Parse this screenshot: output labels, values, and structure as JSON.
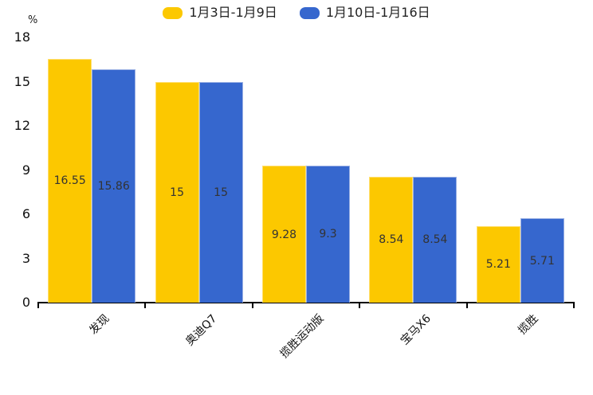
{
  "chart": {
    "unit_label": "%",
    "legend": {
      "items": [
        {
          "label": "1月3日-1月9日",
          "color": "#FCC800"
        },
        {
          "label": "1月10日-1月16日",
          "color": "#3667CE"
        }
      ]
    }
  },
  "chart_data": {
    "type": "bar",
    "title": "",
    "categories": [
      "发现",
      "奥迪Q7",
      "揽胜运动版",
      "宝马X6",
      "揽胜"
    ],
    "series": [
      {
        "name": "1月3日-1月9日",
        "color": "#FCC800",
        "border_color": "#FFDF70",
        "values": [
          16.55,
          15,
          9.28,
          8.54,
          5.21
        ]
      },
      {
        "name": "1月10日-1月16日",
        "color": "#3667CE",
        "border_color": "#9AB0E4",
        "values": [
          15.86,
          15,
          9.3,
          8.54,
          5.71
        ]
      }
    ],
    "xlabel": "",
    "ylabel": "%",
    "ylim": [
      0,
      18
    ],
    "yticks": [
      0,
      3,
      6,
      9,
      12,
      15,
      18
    ],
    "grid": false,
    "legend_position": "top",
    "value_labels_shown": true,
    "axis_color": "#000000",
    "label_color": "#333333"
  }
}
